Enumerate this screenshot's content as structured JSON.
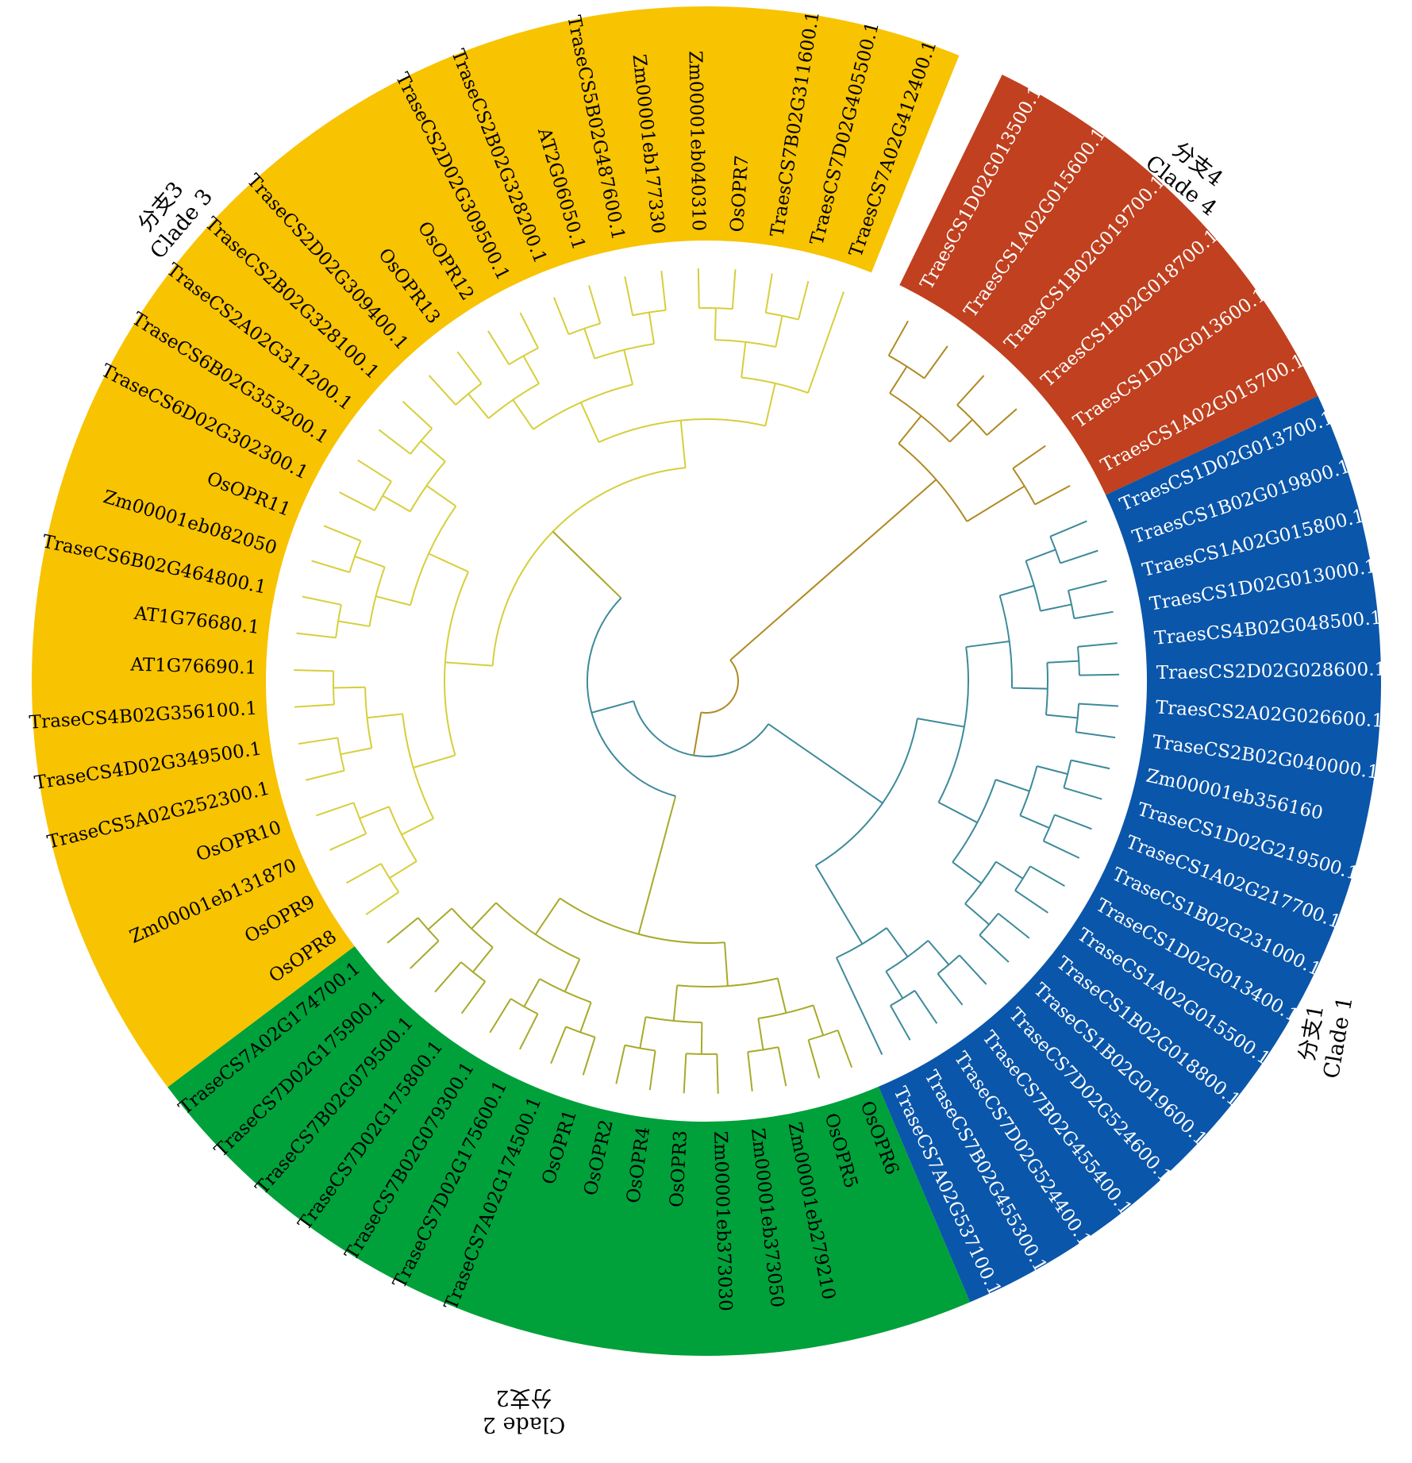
{
  "figure": {
    "type": "circular-phylogenetic-tree",
    "title": ""
  },
  "colors": {
    "clade1": "#0a56aa",
    "clade2": "#00a03a",
    "clade3": "#f8c300",
    "clade4": "#c0401f",
    "branch_clade1": "#3d8a9a",
    "branch_clade2": "#a8aa2a",
    "branch_clade3": "#d6cf3c",
    "branch_clade4": "#b08a22",
    "clade_label_text": "#000000"
  },
  "clade_labels": [
    {
      "cn": "分支1",
      "en": "Clade 1"
    },
    {
      "cn": "分支2",
      "en": "Clade 2"
    },
    {
      "cn": "分支3",
      "en": "Clade 3"
    },
    {
      "cn": "分支4",
      "en": "Clade 4"
    }
  ],
  "clades": [
    {
      "id": "clade4",
      "name": "Clade 4",
      "text_color": "#ffffff",
      "leaves": [
        "TraesCS1D02G013500.1",
        "TraesCS1A02G015600.1",
        "TraesCS1B02G019700.1",
        "TraesCS1B02G018700.1",
        "TraesCS1D02G013600.1",
        "TraesCS1A02G015700.1"
      ]
    },
    {
      "id": "clade1",
      "name": "Clade 1",
      "text_color": "#ffffff",
      "leaves": [
        "TraesCS1D02G013700.1",
        "TraesCS1B02G019800.1",
        "TraesCS1A02G015800.1",
        "TraesCS1D02G013000.1",
        "TraesCS4B02G048500.1",
        "TraesCS2D02G028600.1",
        "TraesCS2A02G026600.1",
        "TraseCS2B02G040000.1",
        "Zm00001eb356160",
        "TraseCS1D02G219500.1",
        "TraseCS1A02G217700.1",
        "TraseCS1B02G231000.1",
        "TraseCS1D02G013400.1",
        "TraseCS1A02G015500.1",
        "TraseCS1B02G018800.1",
        "TraseCS1B02G019600.1",
        "TraseCS7D02G524600.1",
        "TraseCS7B02G455400.1",
        "TraseCS7D02G524400.1",
        "TraseCS7B02G455300.1",
        "TraseCS7A02G537100.1"
      ]
    },
    {
      "id": "clade2",
      "name": "Clade 2",
      "text_color": "#000000",
      "leaves": [
        "OsOPR6",
        "OsOPR5",
        "Zm00001eb279210",
        "Zm00001eb373050",
        "Zm00001eb373030",
        "OsOPR3",
        "OsOPR4",
        "OsOPR2",
        "OsOPR1",
        "TraseCS7A02G174500.1",
        "TraseCS7D02G175600.1",
        "TraseCS7B02G079300.1",
        "TraseCS7D02G175800.1",
        "TraseCS7B02G079500.1",
        "TraseCS7D02G175900.1",
        "TraseCS7A02G174700.1"
      ]
    },
    {
      "id": "clade3",
      "name": "Clade 3",
      "text_color": "#000000",
      "leaves": [
        "OsOPR8",
        "OsOPR9",
        "Zm00001eb131870",
        "OsOPR10",
        "TraseCS5A02G252300.1",
        "TraseCS4D02G349500.1",
        "TraseCS4B02G356100.1",
        "AT1G76690.1",
        "AT1G76680.1",
        "TraseCS6B02G464800.1",
        "Zm00001eb082050",
        "OsOPR11",
        "TraseCS6D02G302300.1",
        "TraseCS6B02G353200.1",
        "TraseCS2A02G311200.1",
        "TraseCS2B02G328100.1",
        "TraseCS2D02G309400.1",
        "OsOPR13",
        "OsOPR12",
        "TraseCS2D02G309500.1",
        "TraseCS2B02G328200.1",
        "AT2G06050.1",
        "TraseCS5B02G487600.1",
        "Zm00001eb177330",
        "Zm00001eb040310",
        "OsOPR7",
        "TraesCS7B02G311600.1",
        "TraesCS7D02G405500.1",
        "TraesCS7A02G412400.1"
      ]
    }
  ]
}
